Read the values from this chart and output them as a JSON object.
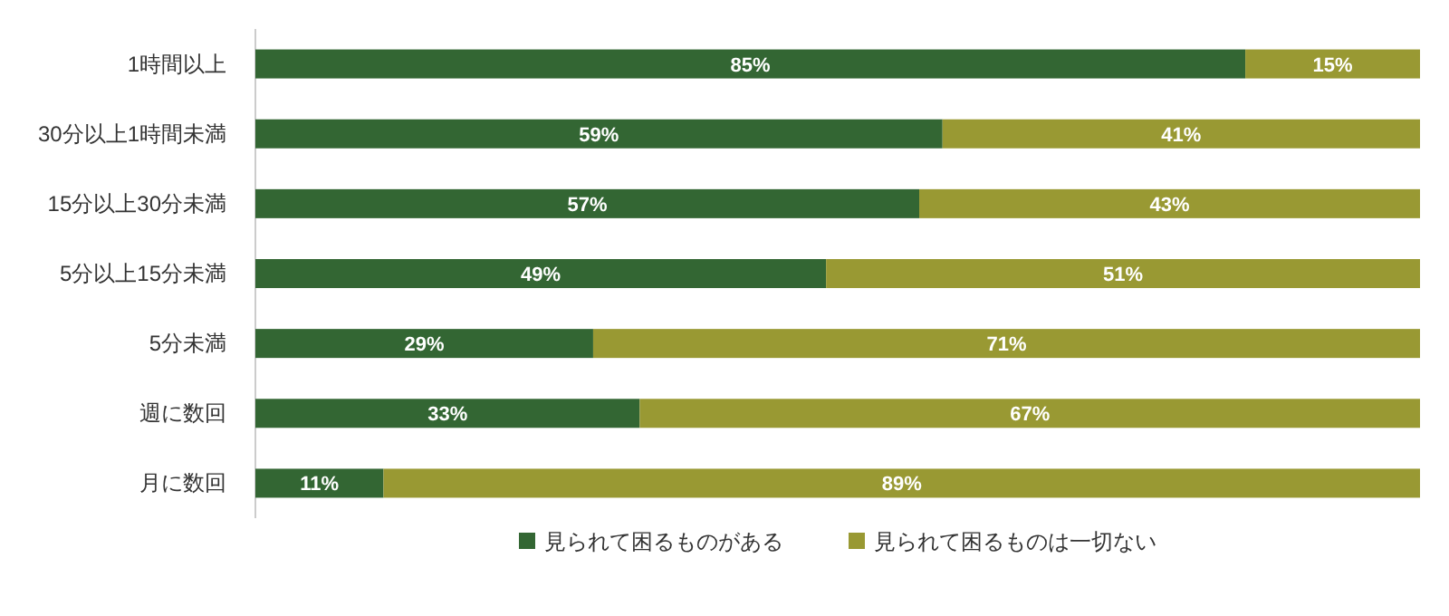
{
  "chart_data": {
    "type": "bar",
    "orientation": "horizontal",
    "stacked": true,
    "legend": "bottom",
    "categories": [
      "1時間以上",
      "30分以上1時間未満",
      "15分以上30分未満",
      "5分以上15分未満",
      "5分未満",
      "週に数回",
      "月に数回"
    ],
    "series": [
      {
        "name": "見られて困るものがある",
        "color": "#336633",
        "values": [
          85,
          59,
          57,
          49,
          29,
          33,
          11
        ],
        "value_labels": [
          "85%",
          "59%",
          "57%",
          "49%",
          "29%",
          "33%",
          "11%"
        ]
      },
      {
        "name": "見られて困るものは一切ない",
        "color": "#999933",
        "values": [
          15,
          41,
          43,
          51,
          71,
          67,
          89
        ],
        "value_labels": [
          "15%",
          "41%",
          "43%",
          "51%",
          "71%",
          "67%",
          "89%"
        ]
      }
    ]
  }
}
